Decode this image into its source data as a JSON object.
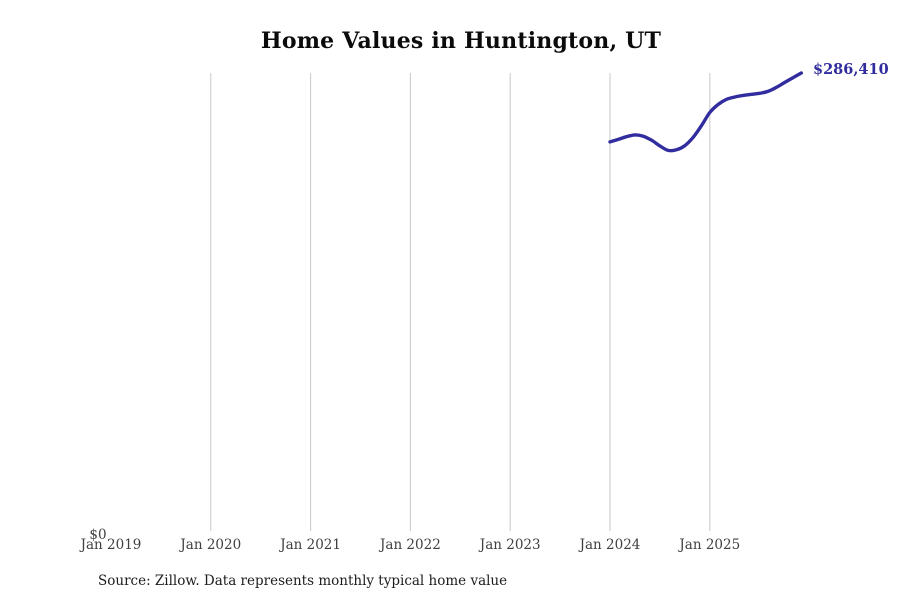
{
  "chart_data": {
    "type": "line",
    "title": "Home Values in Huntington, UT",
    "source_note": "Source: Zillow. Data represents monthly typical home value",
    "annotation": {
      "end_label": "$286,410"
    },
    "line_color": "#312d9e",
    "gridline_color": "#c9c9c9",
    "background": "#ffffff",
    "x_axis": {
      "start": "Jan 2019",
      "end": "Jan 2026",
      "tick_labels": [
        "Jan 2019",
        "Jan 2020",
        "Jan 2021",
        "Jan 2022",
        "Jan 2023",
        "Jan 2024",
        "Jan 2025"
      ],
      "gridline_labels": [
        "Jan 2020",
        "Jan 2021",
        "Jan 2022",
        "Jan 2023",
        "Jan 2024",
        "Jan 2025"
      ]
    },
    "y_axis": {
      "min": 0,
      "max": 286410,
      "tick_labels": [
        "$0"
      ]
    },
    "series": [
      {
        "name": "Monthly typical home value",
        "x": [
          "Jan 2024",
          "Feb 2024",
          "Mar 2024",
          "Apr 2024",
          "May 2024",
          "Jun 2024",
          "Jul 2024",
          "Aug 2024",
          "Sep 2024",
          "Oct 2024",
          "Nov 2024",
          "Dec 2024",
          "Jan 2025",
          "Feb 2025",
          "Mar 2025",
          "Apr 2025",
          "May 2025",
          "Jun 2025",
          "Jul 2025",
          "Aug 2025",
          "Sep 2025",
          "Oct 2025",
          "Nov 2025",
          "Dec 2025"
        ],
        "values": [
          243300,
          244900,
          246600,
          247700,
          246900,
          244400,
          240800,
          238000,
          238400,
          241000,
          246200,
          253500,
          261700,
          266700,
          269900,
          271400,
          272400,
          273100,
          273700,
          274900,
          277400,
          280500,
          283500,
          286410
        ]
      }
    ]
  }
}
